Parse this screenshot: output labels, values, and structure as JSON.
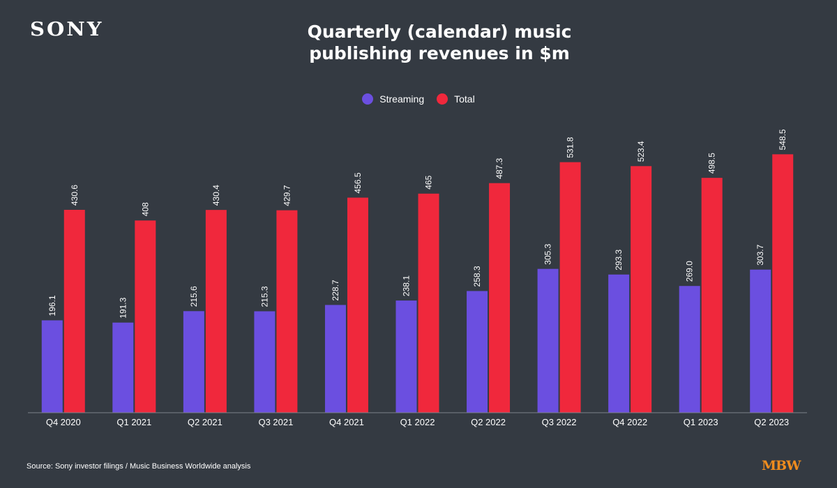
{
  "header": {
    "logo_text": "SONY",
    "title_line1": "Quarterly (calendar) music",
    "title_line2": "publishing revenues in $m"
  },
  "footer": {
    "source": "Source: Sony investor filings / Music Business Worldwide analysis",
    "brand": "MBW"
  },
  "colors": {
    "background": "#343a42",
    "streaming": "#6b4fe0",
    "total": "#f0283c",
    "axis": "#7c828a",
    "text": "#ffffff",
    "brand": "#f08c1e"
  },
  "chart_data": {
    "type": "bar",
    "title": "Quarterly (calendar) music publishing revenues in $m",
    "xlabel": "",
    "ylabel": "",
    "ylim": [
      0,
      560
    ],
    "grid": false,
    "legend_position": "top-center",
    "categories": [
      "Q4 2020",
      "Q1 2021",
      "Q2 2021",
      "Q3 2021",
      "Q4 2021",
      "Q1 2022",
      "Q2 2022",
      "Q3 2022",
      "Q4 2022",
      "Q1 2023",
      "Q2 2023"
    ],
    "series": [
      {
        "name": "Streaming",
        "color": "#6b4fe0",
        "values": [
          196.1,
          191.3,
          215.6,
          215.3,
          228.7,
          238.1,
          258.3,
          305.3,
          293.3,
          269.0,
          303.7
        ],
        "labels": [
          "196.1",
          "191.3",
          "215.6",
          "215.3",
          "228.7",
          "238.1",
          "258.3",
          "305.3",
          "293.3",
          "269.0",
          "303.7"
        ]
      },
      {
        "name": "Total",
        "color": "#f0283c",
        "values": [
          430.6,
          408,
          430.4,
          429.7,
          456.5,
          465,
          487.3,
          531.8,
          523.4,
          498.5,
          548.5
        ],
        "labels": [
          "430.6",
          "408",
          "430.4",
          "429.7",
          "456.5",
          "465",
          "487.3",
          "531.8",
          "523.4",
          "498.5",
          "548.5"
        ]
      }
    ]
  }
}
